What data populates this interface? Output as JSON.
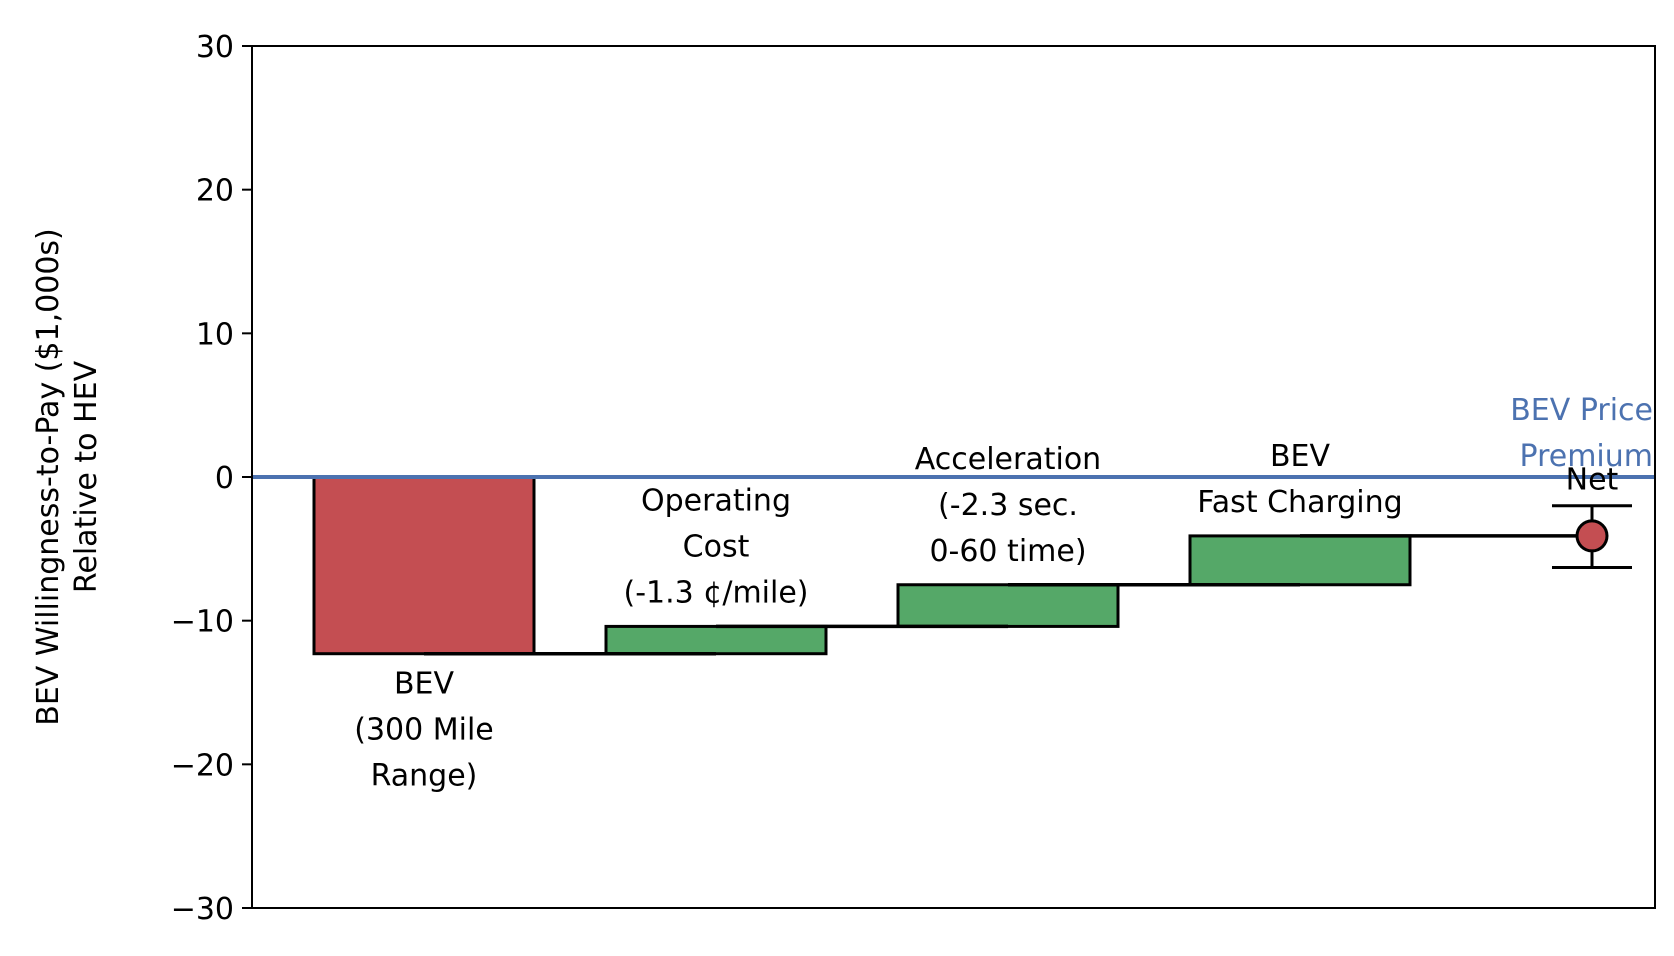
{
  "chart_data": {
    "type": "bar",
    "subtype": "waterfall",
    "ylabel_lines": [
      "BEV Willingness-to-Pay ($1,000s)",
      "Relative to HEV"
    ],
    "ylim": [
      -30,
      30
    ],
    "yticks": [
      30,
      20,
      10,
      0,
      -10,
      -20,
      -30
    ],
    "ytick_labels": [
      "30",
      "20",
      "10",
      "0",
      "−10",
      "−20",
      "−30"
    ],
    "grid": false,
    "steps": [
      {
        "label_lines": [
          "BEV",
          "(300 Mile",
          "Range)"
        ],
        "start": 0,
        "end": -12.3,
        "color": "#c44e52",
        "label_position": "below"
      },
      {
        "label_lines": [
          "Operating",
          "Cost",
          "(-1.3 ¢/mile)"
        ],
        "start": -12.3,
        "end": -10.4,
        "color": "#55a868",
        "label_position": "above"
      },
      {
        "label_lines": [
          "Acceleration",
          "(-2.3 sec.",
          "0-60 time)"
        ],
        "start": -10.4,
        "end": -7.5,
        "color": "#55a868",
        "label_position": "above"
      },
      {
        "label_lines": [
          "BEV",
          "Fast Charging"
        ],
        "start": -7.5,
        "end": -4.1,
        "color": "#55a868",
        "label_position": "above"
      }
    ],
    "net": {
      "label": "Net",
      "value": -4.1,
      "error_low": -6.3,
      "error_high": -2.0,
      "color": "#c44e52"
    },
    "reference_line": {
      "value": 0,
      "label_lines": [
        "BEV Price",
        "Premium"
      ],
      "color": "#4c72b0"
    }
  }
}
